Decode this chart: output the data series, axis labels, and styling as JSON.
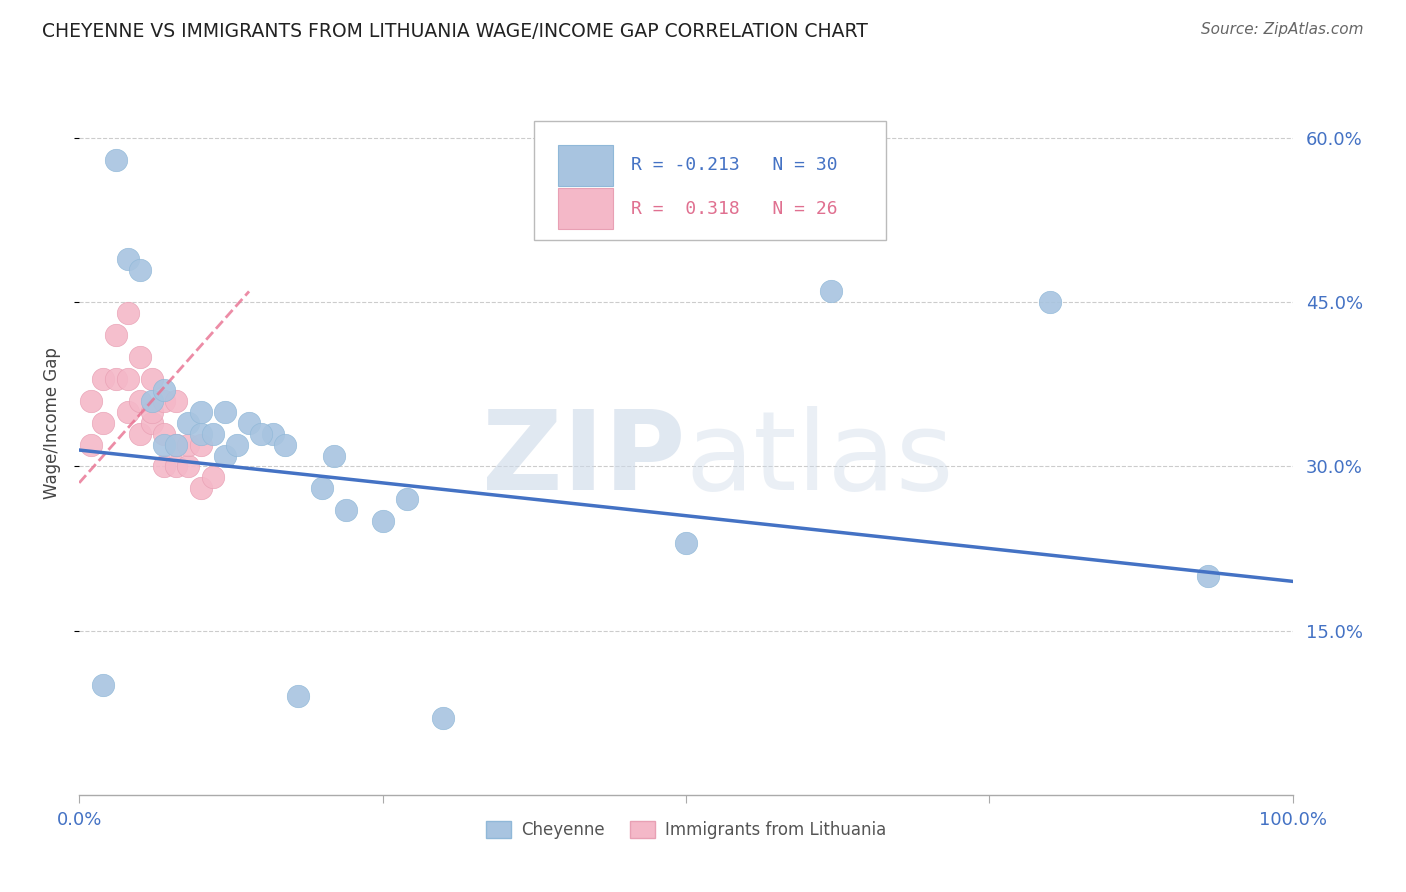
{
  "title": "CHEYENNE VS IMMIGRANTS FROM LITHUANIA WAGE/INCOME GAP CORRELATION CHART",
  "source": "Source: ZipAtlas.com",
  "ylabel": "Wage/Income Gap",
  "xlim": [
    0.0,
    1.0
  ],
  "ylim": [
    0.0,
    0.68
  ],
  "ytick_positions": [
    0.15,
    0.3,
    0.45,
    0.6
  ],
  "ytick_labels": [
    "15.0%",
    "30.0%",
    "45.0%",
    "60.0%"
  ],
  "blue_r": -0.213,
  "blue_n": 30,
  "pink_r": 0.318,
  "pink_n": 26,
  "blue_color": "#a8c4e0",
  "pink_color": "#f4b8c8",
  "blue_line_color": "#4472c4",
  "pink_line_color": "#e07090",
  "grid_color": "#cccccc",
  "blue_points_x": [
    0.02,
    0.03,
    0.04,
    0.05,
    0.06,
    0.07,
    0.07,
    0.08,
    0.09,
    0.1,
    0.1,
    0.11,
    0.12,
    0.12,
    0.13,
    0.14,
    0.16,
    0.17,
    0.2,
    0.21,
    0.22,
    0.25,
    0.27,
    0.5,
    0.62,
    0.8,
    0.93,
    0.15,
    0.18,
    0.3
  ],
  "blue_points_y": [
    0.1,
    0.58,
    0.49,
    0.48,
    0.36,
    0.37,
    0.32,
    0.32,
    0.34,
    0.33,
    0.35,
    0.33,
    0.35,
    0.31,
    0.32,
    0.34,
    0.33,
    0.32,
    0.28,
    0.31,
    0.26,
    0.25,
    0.27,
    0.23,
    0.46,
    0.45,
    0.2,
    0.33,
    0.09,
    0.07
  ],
  "pink_points_x": [
    0.01,
    0.01,
    0.02,
    0.02,
    0.03,
    0.03,
    0.04,
    0.04,
    0.04,
    0.05,
    0.05,
    0.05,
    0.06,
    0.06,
    0.06,
    0.07,
    0.07,
    0.07,
    0.08,
    0.08,
    0.08,
    0.09,
    0.09,
    0.1,
    0.1,
    0.11
  ],
  "pink_points_y": [
    0.32,
    0.36,
    0.34,
    0.38,
    0.38,
    0.42,
    0.35,
    0.38,
    0.44,
    0.33,
    0.36,
    0.4,
    0.34,
    0.35,
    0.38,
    0.3,
    0.33,
    0.36,
    0.3,
    0.32,
    0.36,
    0.3,
    0.32,
    0.28,
    0.32,
    0.29
  ],
  "blue_trend_x": [
    0.0,
    1.0
  ],
  "blue_trend_y": [
    0.315,
    0.195
  ],
  "pink_trend_x": [
    0.0,
    0.14
  ],
  "pink_trend_y": [
    0.285,
    0.46
  ]
}
